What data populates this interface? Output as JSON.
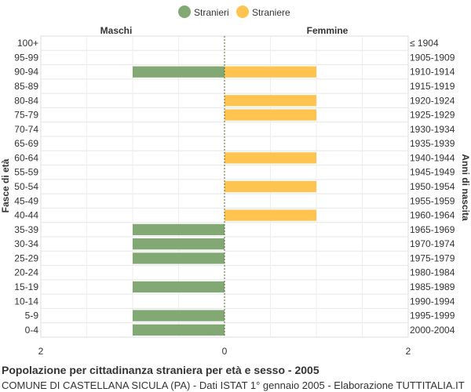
{
  "chart_data": {
    "type": "bar",
    "orientation": "horizontal-population-pyramid",
    "legend": {
      "placement": "top-center",
      "items": [
        {
          "name": "Stranieri",
          "color": "#82a874"
        },
        {
          "name": "Straniere",
          "color": "#ffc34f"
        }
      ]
    },
    "left_header": "Maschi",
    "right_header": "Femmine",
    "ylabel_left": "Fasce di età",
    "ylabel_right": "Anni di nascita",
    "x_ticks": [
      "2",
      "0",
      "2"
    ],
    "xlim": [
      -2,
      2
    ],
    "grid": true,
    "categories": [
      "100+",
      "95-99",
      "90-94",
      "85-89",
      "80-84",
      "75-79",
      "70-74",
      "65-69",
      "60-64",
      "55-59",
      "50-54",
      "45-49",
      "40-44",
      "35-39",
      "30-34",
      "25-29",
      "20-24",
      "15-19",
      "10-14",
      "5-9",
      "0-4"
    ],
    "birth_years": [
      "≤ 1904",
      "1905-1909",
      "1910-1914",
      "1915-1919",
      "1920-1924",
      "1925-1929",
      "1930-1934",
      "1935-1939",
      "1940-1944",
      "1945-1949",
      "1950-1954",
      "1955-1959",
      "1960-1964",
      "1965-1969",
      "1970-1974",
      "1975-1979",
      "1980-1984",
      "1985-1989",
      "1990-1994",
      "1995-1999",
      "2000-2004"
    ],
    "series": [
      {
        "name": "Stranieri",
        "color": "#82a874",
        "values": [
          0,
          0,
          1,
          0,
          0,
          0,
          0,
          0,
          0,
          0,
          0,
          0,
          0,
          1,
          1,
          1,
          0,
          1,
          0,
          1,
          1
        ]
      },
      {
        "name": "Straniere",
        "color": "#ffc34f",
        "values": [
          0,
          0,
          1,
          0,
          1,
          1,
          0,
          0,
          1,
          0,
          1,
          0,
          1,
          0,
          0,
          0,
          0,
          0,
          0,
          0,
          0
        ]
      }
    ]
  },
  "caption": {
    "title": "Popolazione per cittadinanza straniera per età e sesso - 2005",
    "subtitle": "COMUNE DI CASTELLANA SICULA (PA) - Dati ISTAT 1° gennaio 2005 - Elaborazione TUTTITALIA.IT"
  }
}
